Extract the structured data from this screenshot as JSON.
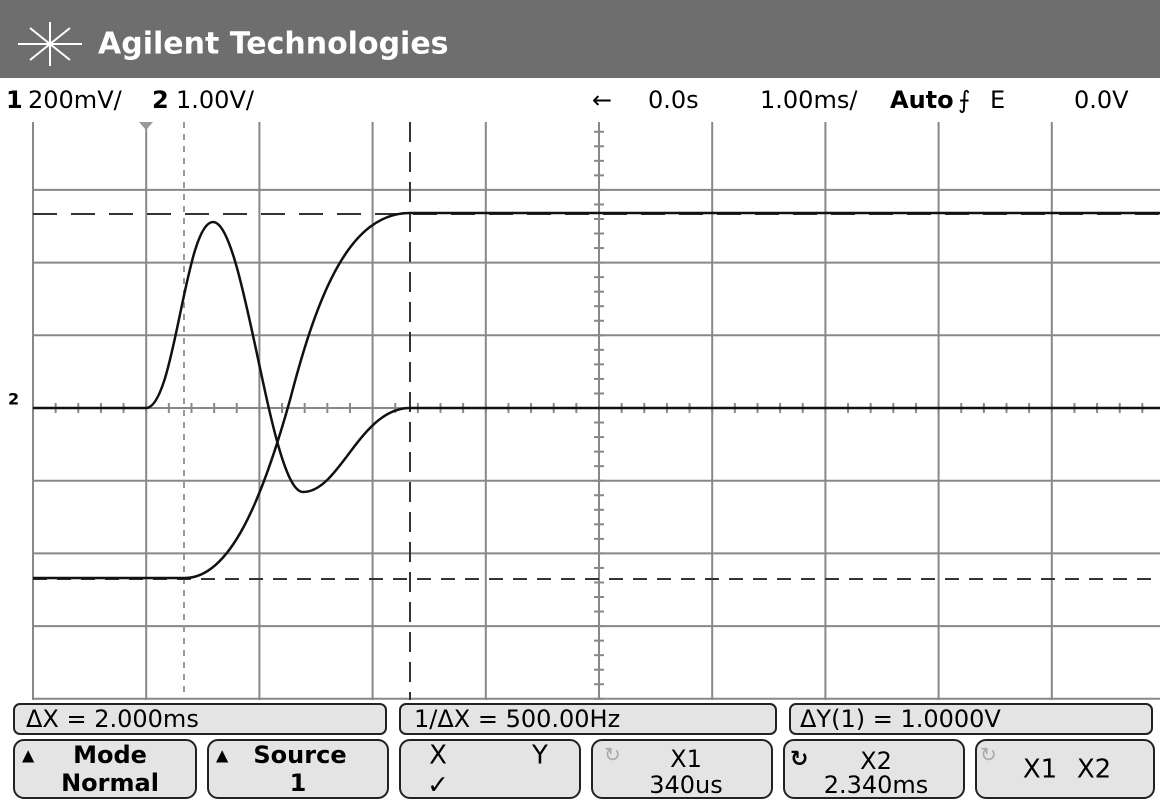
{
  "header": {
    "brand": "Agilent Technologies"
  },
  "status": {
    "ch1_number": "1",
    "ch1_scale": "200mV/",
    "ch2_number": "2",
    "ch2_scale": "1.00V/",
    "delay": "0.0s",
    "timebase": "1.00ms/",
    "trigger_mode": "Auto",
    "trigger_source": "E",
    "trigger_level": "0.0V"
  },
  "measurements": [
    "ΔX = 2.000ms",
    "1/ΔX = 500.00Hz",
    "ΔY(1) = 1.0000V"
  ],
  "softkeys": [
    {
      "title": "Mode",
      "value": "Normal"
    },
    {
      "title": "Source",
      "value": "1"
    },
    {
      "left": "X",
      "right": "Y",
      "check": "✓"
    },
    {
      "title": "X1",
      "value": "340us"
    },
    {
      "title": "X2",
      "value": "2.340ms"
    },
    {
      "left": "X1",
      "right": "X2"
    }
  ]
}
